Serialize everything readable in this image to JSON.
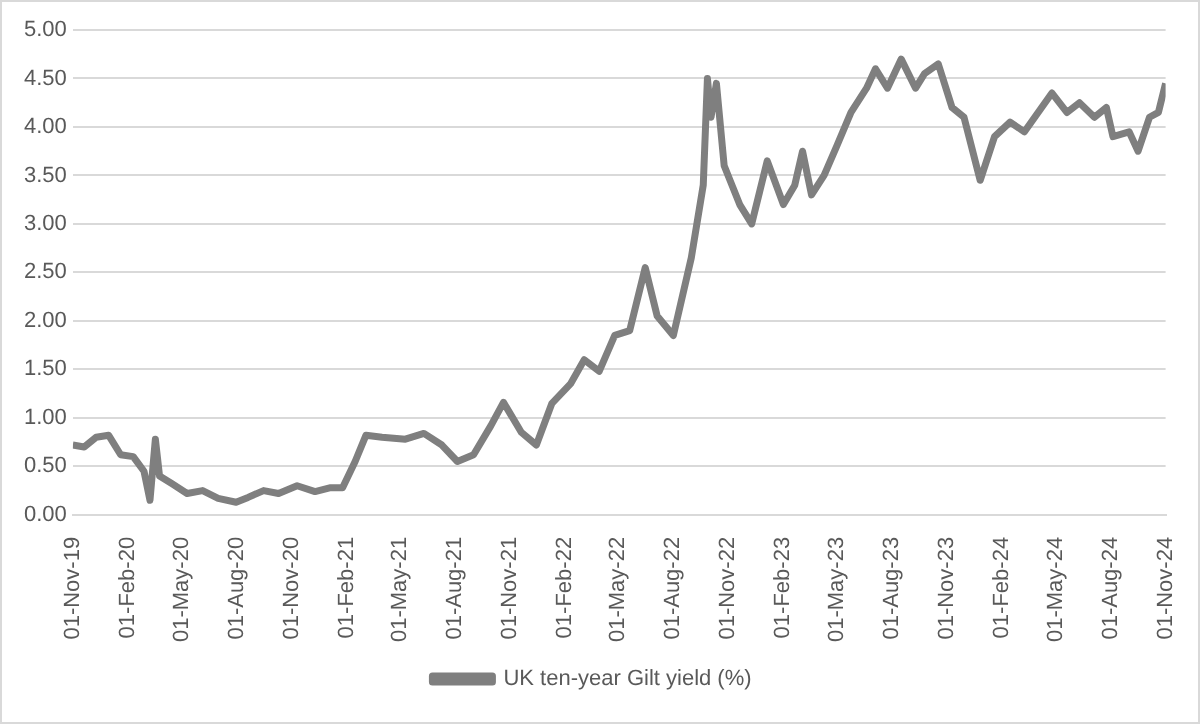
{
  "chart_data": {
    "type": "line",
    "x": [
      "2019-11-01",
      "2019-11-20",
      "2019-12-10",
      "2019-12-31",
      "2020-01-20",
      "2020-02-10",
      "2020-02-28",
      "2020-03-09",
      "2020-03-18",
      "2020-03-25",
      "2020-04-15",
      "2020-05-10",
      "2020-06-05",
      "2020-07-01",
      "2020-07-31",
      "2020-08-20",
      "2020-09-15",
      "2020-10-10",
      "2020-11-10",
      "2020-12-10",
      "2021-01-05",
      "2021-01-25",
      "2021-02-15",
      "2021-03-05",
      "2021-04-01",
      "2021-05-10",
      "2021-06-10",
      "2021-07-10",
      "2021-08-05",
      "2021-09-01",
      "2021-09-30",
      "2021-10-21",
      "2021-11-20",
      "2021-12-15",
      "2022-01-10",
      "2022-02-10",
      "2022-03-05",
      "2022-03-30",
      "2022-04-25",
      "2022-05-20",
      "2022-06-15",
      "2022-07-05",
      "2022-08-01",
      "2022-08-31",
      "2022-09-20",
      "2022-09-27",
      "2022-10-03",
      "2022-10-12",
      "2022-10-25",
      "2022-11-20",
      "2022-12-10",
      "2023-01-05",
      "2023-02-01",
      "2023-02-20",
      "2023-03-05",
      "2023-03-20",
      "2023-04-10",
      "2023-05-01",
      "2023-05-25",
      "2023-06-20",
      "2023-07-05",
      "2023-07-25",
      "2023-08-17",
      "2023-09-10",
      "2023-09-25",
      "2023-10-18",
      "2023-11-10",
      "2023-11-30",
      "2023-12-27",
      "2024-01-20",
      "2024-02-15",
      "2024-03-10",
      "2024-04-25",
      "2024-05-20",
      "2024-06-10",
      "2024-07-05",
      "2024-07-25",
      "2024-08-05",
      "2024-09-01",
      "2024-09-16",
      "2024-10-05",
      "2024-10-20",
      "2024-11-01"
    ],
    "series": [
      {
        "name": "UK ten-year Gilt yield (%)",
        "color": "#7f7f7f",
        "values": [
          0.72,
          0.7,
          0.8,
          0.82,
          0.62,
          0.6,
          0.45,
          0.15,
          0.78,
          0.4,
          0.32,
          0.22,
          0.25,
          0.17,
          0.13,
          0.18,
          0.25,
          0.22,
          0.3,
          0.24,
          0.28,
          0.28,
          0.55,
          0.82,
          0.8,
          0.78,
          0.84,
          0.72,
          0.55,
          0.62,
          0.92,
          1.16,
          0.85,
          0.72,
          1.15,
          1.35,
          1.6,
          1.48,
          1.85,
          1.9,
          2.55,
          2.05,
          1.85,
          2.65,
          3.4,
          4.5,
          4.1,
          4.45,
          3.6,
          3.2,
          3.0,
          3.65,
          3.2,
          3.4,
          3.75,
          3.3,
          3.5,
          3.8,
          4.15,
          4.4,
          4.6,
          4.4,
          4.7,
          4.4,
          4.55,
          4.65,
          4.2,
          4.1,
          3.45,
          3.9,
          4.05,
          3.95,
          4.35,
          4.15,
          4.25,
          4.1,
          4.2,
          3.9,
          3.95,
          3.75,
          4.1,
          4.15,
          4.45
        ]
      }
    ],
    "ylim": [
      0,
      5
    ],
    "yticks": [
      {
        "value": 0,
        "label": "0.00"
      },
      {
        "value": 0.5,
        "label": "0.50"
      },
      {
        "value": 1,
        "label": "1.00"
      },
      {
        "value": 1.5,
        "label": "1.50"
      },
      {
        "value": 2,
        "label": "2.00"
      },
      {
        "value": 2.5,
        "label": "2.50"
      },
      {
        "value": 3,
        "label": "3.00"
      },
      {
        "value": 3.5,
        "label": "3.50"
      },
      {
        "value": 4,
        "label": "4.00"
      },
      {
        "value": 4.5,
        "label": "4.50"
      },
      {
        "value": 5,
        "label": "5.00"
      }
    ],
    "xlim": [
      "2019-11-01",
      "2024-11-01"
    ],
    "xticks": [
      {
        "value": "2019-11-01",
        "label": "01-Nov-19"
      },
      {
        "value": "2020-02-01",
        "label": "01-Feb-20"
      },
      {
        "value": "2020-05-01",
        "label": "01-May-20"
      },
      {
        "value": "2020-08-01",
        "label": "01-Aug-20"
      },
      {
        "value": "2020-11-01",
        "label": "01-Nov-20"
      },
      {
        "value": "2021-02-01",
        "label": "01-Feb-21"
      },
      {
        "value": "2021-05-01",
        "label": "01-May-21"
      },
      {
        "value": "2021-08-01",
        "label": "01-Aug-21"
      },
      {
        "value": "2021-11-01",
        "label": "01-Nov-21"
      },
      {
        "value": "2022-02-01",
        "label": "01-Feb-22"
      },
      {
        "value": "2022-05-01",
        "label": "01-May-22"
      },
      {
        "value": "2022-08-01",
        "label": "01-Aug-22"
      },
      {
        "value": "2022-11-01",
        "label": "01-Nov-22"
      },
      {
        "value": "2023-02-01",
        "label": "01-Feb-23"
      },
      {
        "value": "2023-05-01",
        "label": "01-May-23"
      },
      {
        "value": "2023-08-01",
        "label": "01-Aug-23"
      },
      {
        "value": "2023-11-01",
        "label": "01-Nov-23"
      },
      {
        "value": "2024-02-01",
        "label": "01-Feb-24"
      },
      {
        "value": "2024-05-01",
        "label": "01-May-24"
      },
      {
        "value": "2024-08-01",
        "label": "01-Aug-24"
      },
      {
        "value": "2024-11-01",
        "label": "01-Nov-24"
      }
    ],
    "grid": "y",
    "legend": "bottom",
    "marker": "none",
    "line_style": "solid"
  }
}
